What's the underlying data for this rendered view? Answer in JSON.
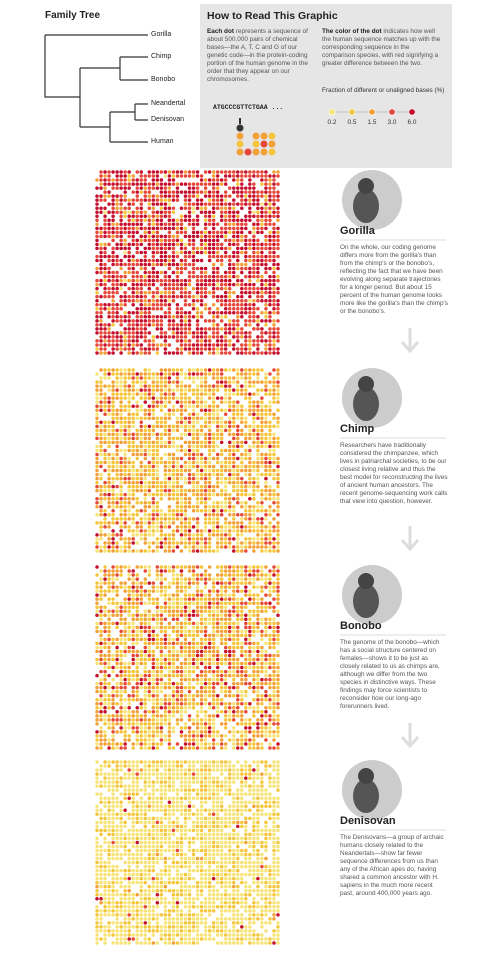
{
  "family_tree": {
    "title": "Family Tree",
    "species": [
      "Gorilla",
      "Chimp",
      "Bonobo",
      "Neandertal",
      "Denisovan",
      "Human"
    ]
  },
  "how_to_read": {
    "title": "How to Read This Graphic",
    "col1": {
      "lead": "Each dot",
      "text": " represents a sequence of about 500,000 pairs of chemical bases—the A, T, C and G of our genetic code—in the protein-coding portion of the human genome in the order that they appear on our chromosomes."
    },
    "col2": {
      "lead": "The color of the dot",
      "text": " indicates how well the human sequence matches up with the corresponding sequence in the comparison species, with red signifying a greater difference between the two."
    },
    "sequence": "ATGCCCGTTCTGAA ...",
    "legend": {
      "title": "Fraction of different or unaligned bases (%)",
      "ticks": [
        "0.2",
        "0.5",
        "1.5",
        "3.0",
        "6.0"
      ]
    }
  },
  "panels": [
    {
      "name": "Gorilla",
      "text": "On the whole, our coding genome differs more from the gorilla's than from the chimp's or the bonobo's, reflecting the fact that we have been evolving along separate trajectories for a longer period. But about 15 percent of the human genome looks more like the gorilla's than the chimp's or the bonobo's."
    },
    {
      "name": "Chimp",
      "text": "Researchers have traditionally considered the chimpanzee, which lives in patriarchal societies, to be our closest living relative and thus the best model for reconstructing the lives of ancient human ancestors. The recent genome-sequencing work calls that view into question, however."
    },
    {
      "name": "Bonobo",
      "text": "The genome of the bonobo—which has a social structure centered on females—shows it to be just as closely related to us as chimps are, although we differ from the two species in distinctive ways. These findings may force scientists to reconsider how our long-ago forerunners lived."
    },
    {
      "name": "Denisovan",
      "text": "The Denisovans—a group of archaic humans closely related to the Neandertals—show far fewer sequence differences from us than any of the African apes do, having shared a common ancestor with H. sapiens in the much more recent past, around 400,000 years ago."
    }
  ]
}
